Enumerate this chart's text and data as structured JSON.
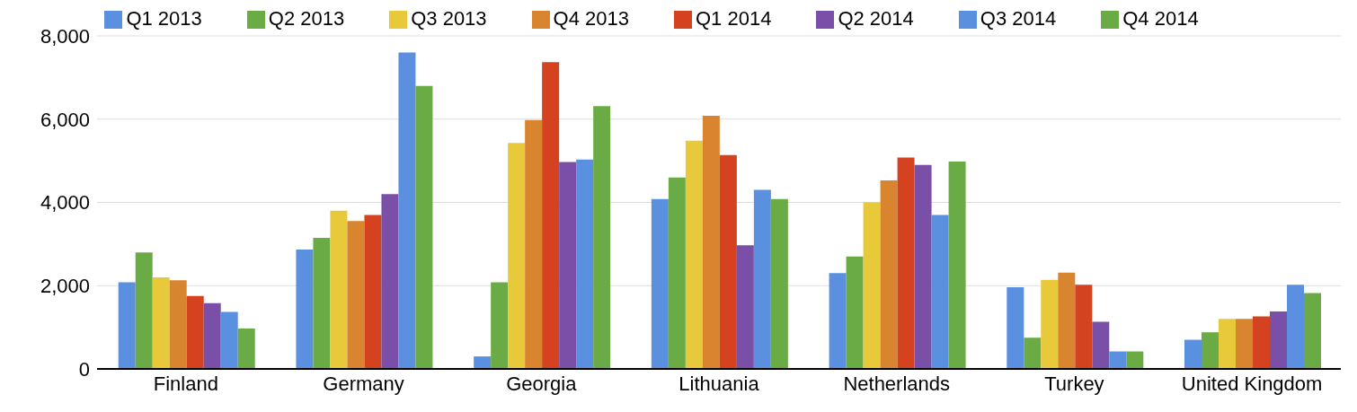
{
  "chart_data": {
    "type": "bar",
    "categories": [
      "Finland",
      "Germany",
      "Georgia",
      "Lithuania",
      "Netherlands",
      "Turkey",
      "United Kingdom"
    ],
    "series": [
      {
        "name": "Q1 2013",
        "color": "#5b8fe0",
        "values": [
          2080,
          2870,
          300,
          4080,
          2300,
          1960,
          700
        ]
      },
      {
        "name": "Q2 2013",
        "color": "#6aab45",
        "values": [
          2800,
          3150,
          2080,
          4600,
          2700,
          750,
          880
        ]
      },
      {
        "name": "Q3 2013",
        "color": "#e8c93a",
        "values": [
          2200,
          3800,
          5430,
          5480,
          4000,
          2140,
          1200
        ]
      },
      {
        "name": "Q4 2013",
        "color": "#d9842e",
        "values": [
          2130,
          3550,
          5980,
          6080,
          4530,
          2310,
          1200
        ]
      },
      {
        "name": "Q1 2014",
        "color": "#d5421f",
        "values": [
          1750,
          3700,
          7370,
          5140,
          5080,
          2020,
          1260
        ]
      },
      {
        "name": "Q2 2014",
        "color": "#7a4fa8",
        "values": [
          1580,
          4200,
          4970,
          2970,
          4900,
          1130,
          1380
        ]
      },
      {
        "name": "Q3 2014",
        "color": "#5b8fe0",
        "values": [
          1370,
          7600,
          5030,
          4300,
          3700,
          420,
          2020
        ]
      },
      {
        "name": "Q4 2014",
        "color": "#6aab45",
        "values": [
          970,
          6800,
          6310,
          4080,
          4980,
          420,
          1820
        ]
      }
    ],
    "ylim": [
      0,
      8000
    ],
    "yticks": [
      {
        "value": 0,
        "label": "0"
      },
      {
        "value": 2000,
        "label": "2,000"
      },
      {
        "value": 4000,
        "label": "4,000"
      },
      {
        "value": 6000,
        "label": "6,000"
      },
      {
        "value": 8000,
        "label": "8,000"
      }
    ],
    "grid": "y",
    "legend": "top"
  }
}
